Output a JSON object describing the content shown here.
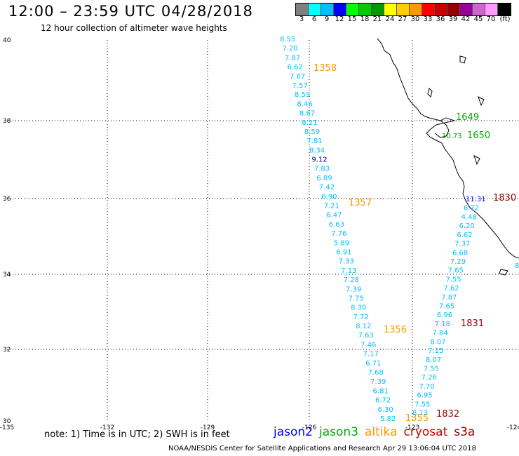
{
  "title": "12:00 – 23:59 UTC 04/28/2018",
  "subtitle": "12 hour collection of altimeter wave heights",
  "scale": {
    "labels": [
      "3",
      "6",
      "9",
      "12",
      "15",
      "18",
      "21",
      "24",
      "27",
      "30",
      "33",
      "36",
      "39",
      "42",
      "45",
      "70",
      "(ft)"
    ],
    "colors": [
      "#808080",
      "#00ffff",
      "#00bfff",
      "#0000ff",
      "#00ff00",
      "#00cc00",
      "#009900",
      "#ffff00",
      "#ffcc00",
      "#ff9900",
      "#ff0000",
      "#cc0000",
      "#990000",
      "#990099",
      "#cc66cc",
      "#ff99ff",
      "#000000"
    ]
  },
  "map": {
    "lon_range": [
      -135,
      -124
    ],
    "lat_range": [
      30,
      40
    ],
    "lon_ticks": [
      "-135",
      "-132",
      "-129",
      "-126",
      "-123",
      "-124"
    ],
    "lat_ticks": [
      "40",
      "38",
      "36",
      "34",
      "32",
      "30"
    ],
    "grid": "dotted"
  },
  "colors": {
    "altika": "#ff9900",
    "jason3": "#00aa00",
    "jason2": "#0000ff",
    "cryosat": "#cc0000",
    "s3a": "#990000",
    "swh": "#00bfff"
  },
  "tracks": [
    {
      "satellite": "altika",
      "values": [
        "8.55",
        "7.20",
        "7.87",
        "6.62",
        "7.87",
        "7.57",
        "8.59",
        "8.46",
        "8.67",
        "8.21",
        "8.59",
        "7.81",
        "8.34",
        "9.12",
        "7.83",
        "6.89",
        "7.42",
        "6.90",
        "7.21",
        "6.47",
        "6.63",
        "7.76",
        "5.89",
        "6.91",
        "7.33",
        "7.13",
        "7.28",
        "7.39",
        "7.75",
        "8.30",
        "7.72",
        "8.12",
        "7.63",
        "7.46",
        "7.17",
        "6.71",
        "7.68",
        "7.39",
        "6.81",
        "6.72",
        "6.30",
        "5.82"
      ],
      "times": [
        "1358",
        "1357",
        "1356",
        "1355"
      ]
    },
    {
      "satellite": "s3a",
      "values": [
        "11.31",
        "6.72",
        "4.48",
        "6.20",
        "6.62",
        "7.37",
        "6.68",
        "7.29",
        "7.65",
        "7.55",
        "7.62",
        "7.87",
        "7.65",
        "6.96",
        "7.18",
        "7.84",
        "8.07",
        "7.15",
        "8.07",
        "7.55",
        "7.26",
        "7.70",
        "6.95",
        "7.55",
        "8.13"
      ],
      "times": [
        "1830",
        "1831",
        "1832"
      ]
    },
    {
      "satellite": "jason3",
      "values": [
        "10.73"
      ],
      "times": [
        "1649",
        "1650"
      ]
    }
  ],
  "edge_value": "8",
  "note": "note: 1) Time is in UTC; 2) SWH is in feet",
  "satellites": [
    "jason2",
    "jason3",
    "altika",
    "cryosat",
    "s3a"
  ],
  "credit": "NOAA/NESDIS Center for Satellite Applications and Research   Apr 29 13:06:04 UTC 2018"
}
